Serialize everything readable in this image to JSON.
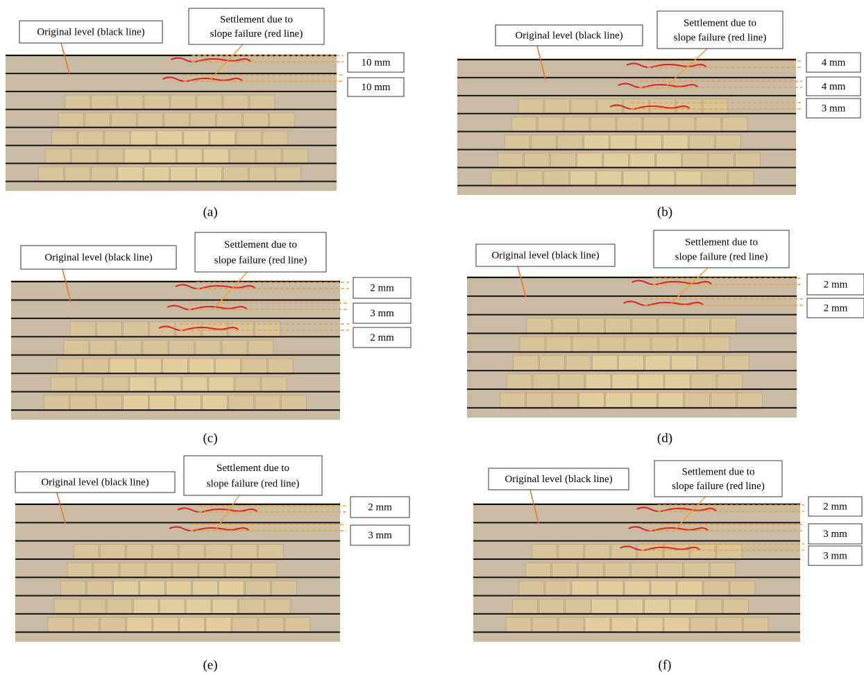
{
  "panels": [
    {
      "label": "(a)",
      "original": "Original level (black line)",
      "settlement": [
        "Settlement due to",
        "slope failure (red line)"
      ],
      "measurements": [
        "10 mm",
        "10 mm"
      ]
    },
    {
      "label": "(b)",
      "original": "Original level (black line)",
      "settlement": [
        "Settlement due to",
        "slope failure (red line)"
      ],
      "measurements": [
        "4 mm",
        "4 mm",
        "3 mm"
      ]
    },
    {
      "label": "(c)",
      "original": "Original level (black line)",
      "settlement": [
        "Settlement due to",
        "slope failure (red line)"
      ],
      "measurements": [
        "2 mm",
        "3 mm",
        "2 mm"
      ]
    },
    {
      "label": "(d)",
      "original": "Original level (black line)",
      "settlement": [
        "Settlement due to",
        "slope failure (red line)"
      ],
      "measurements": [
        "2 mm",
        "2 mm"
      ]
    },
    {
      "label": "(e)",
      "original": "Original level (black line)",
      "settlement": [
        "Settlement due to",
        "slope failure (red line)"
      ],
      "measurements": [
        "2 mm",
        "3 mm"
      ]
    },
    {
      "label": "(f)",
      "original": "Original level (black line)",
      "settlement": [
        "Settlement due to",
        "slope failure (red line)"
      ],
      "measurements": [
        "2 mm",
        "3 mm",
        "3 mm"
      ]
    }
  ]
}
